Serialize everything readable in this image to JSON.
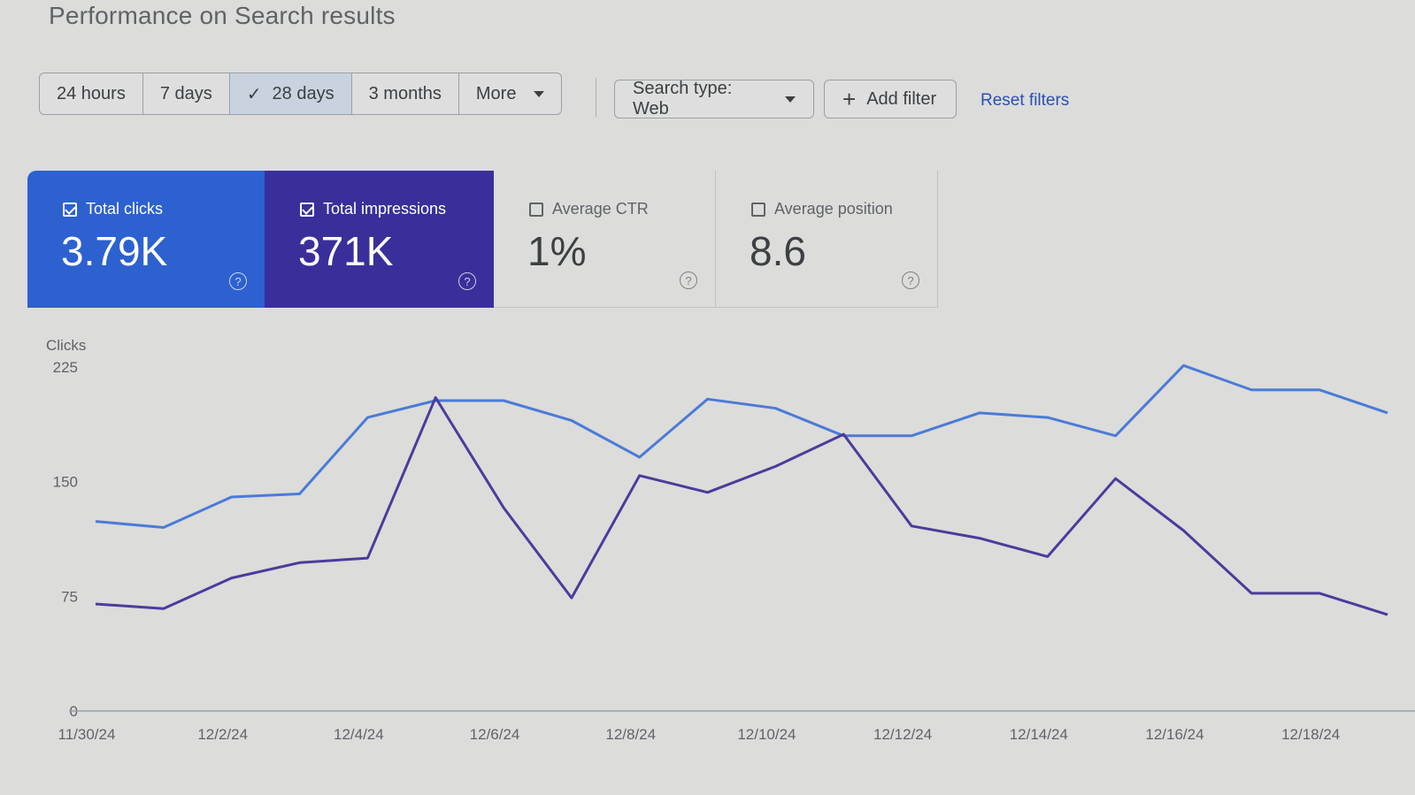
{
  "page": {
    "title": "Performance on Search results"
  },
  "date_range": {
    "options": [
      {
        "label": "24 hours",
        "active": false
      },
      {
        "label": "7 days",
        "active": false
      },
      {
        "label": "28 days",
        "active": true
      },
      {
        "label": "3 months",
        "active": false
      },
      {
        "label": "More",
        "active": false
      }
    ]
  },
  "filters": {
    "search_type_label": "Search type: Web",
    "add_filter_label": "Add filter",
    "reset_label": "Reset filters"
  },
  "metrics": [
    {
      "label": "Total clicks",
      "value": "3.79K",
      "checked": true,
      "color": "#2d61d0"
    },
    {
      "label": "Total impressions",
      "value": "371K",
      "checked": true,
      "color": "#3a2f9a"
    },
    {
      "label": "Average CTR",
      "value": "1%",
      "checked": false
    },
    {
      "label": "Average position",
      "value": "8.6",
      "checked": false
    }
  ],
  "chart_data": {
    "type": "line",
    "ylabel": "Clicks",
    "ylim": [
      0,
      225
    ],
    "yticks": [
      0,
      75,
      150,
      225
    ],
    "x": [
      "11/30/24",
      "12/1/24",
      "12/2/24",
      "12/3/24",
      "12/4/24",
      "12/5/24",
      "12/6/24",
      "12/7/24",
      "12/8/24",
      "12/9/24",
      "12/10/24",
      "12/11/24",
      "12/12/24",
      "12/13/24",
      "12/14/24",
      "12/15/24",
      "12/16/24",
      "12/17/24",
      "12/18/24",
      "12/19/24"
    ],
    "xtick_labels": [
      "11/30/24",
      "12/2/24",
      "12/4/24",
      "12/6/24",
      "12/8/24",
      "12/10/24",
      "12/12/24",
      "12/14/24",
      "12/16/24",
      "12/18/24"
    ],
    "series": [
      {
        "color": "#4a7bd8",
        "values": [
          124,
          120,
          140,
          142,
          192,
          203,
          203,
          190,
          166,
          204,
          198,
          180,
          180,
          195,
          192,
          180,
          226,
          210,
          210,
          195
        ]
      },
      {
        "color": "#4a3c9c",
        "values": [
          70,
          67,
          87,
          97,
          100,
          205,
          133,
          74,
          154,
          143,
          160,
          181,
          121,
          113,
          101,
          152,
          118,
          77,
          77,
          63
        ]
      }
    ],
    "grid": false
  }
}
